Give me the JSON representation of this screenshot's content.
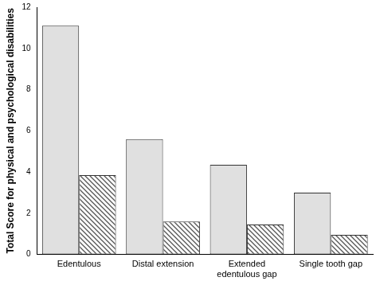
{
  "chart_data": {
    "type": "bar",
    "y_label": "Total Score for physical and psychological disabilities",
    "categories": [
      "Edentulous",
      "Distal extension",
      "Extended edentulous gap",
      "Single tooth gap"
    ],
    "series": [
      {
        "color": "#e0e0e0",
        "values": [
          11.1,
          5.6,
          4.35,
          3.0
        ]
      },
      {
        "color": "#555555",
        "marker": "hatch",
        "values": [
          3.85,
          1.6,
          1.45,
          0.95
        ]
      }
    ],
    "ylim": [
      0,
      12
    ],
    "yticks": [
      0,
      2,
      4,
      6,
      8,
      10,
      12
    ],
    "grid": false
  }
}
